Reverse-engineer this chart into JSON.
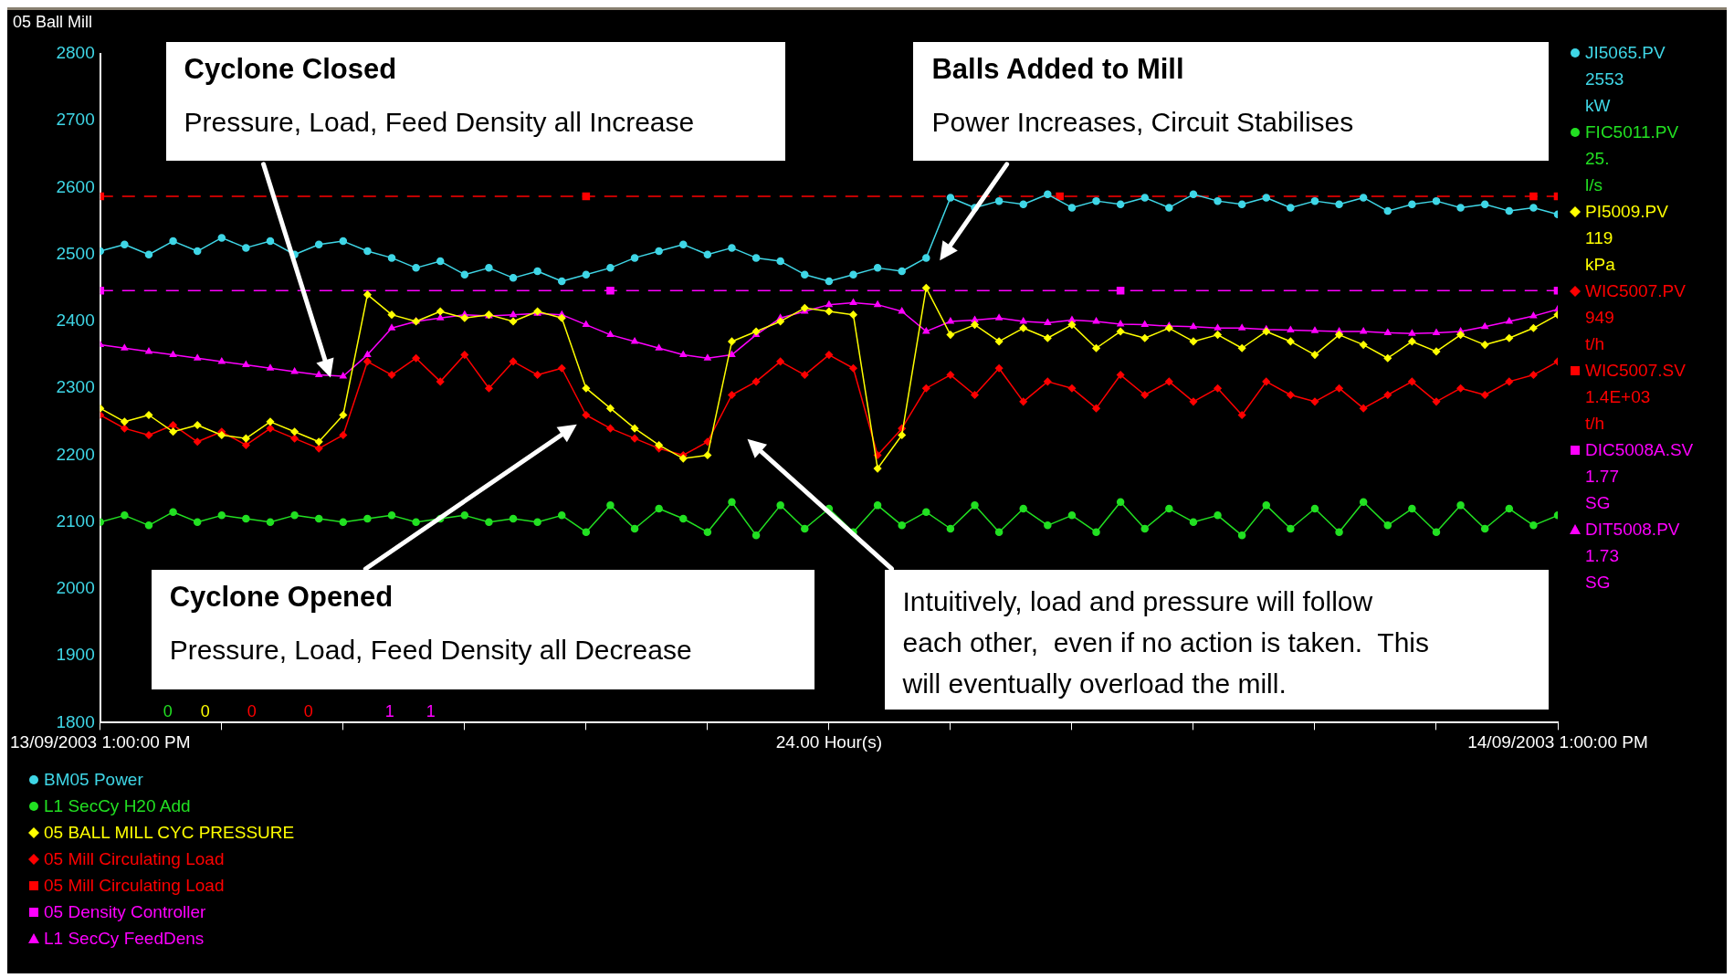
{
  "chart_data": {
    "type": "line",
    "title": "05 Ball Mill",
    "xlabel": "24.00 Hour(s)",
    "x": [
      "2003-09-13T13:00",
      "2003-09-13T13:24",
      "2003-09-13T13:48",
      "2003-09-13T14:12",
      "2003-09-13T14:36",
      "2003-09-13T15:00",
      "2003-09-13T15:24",
      "2003-09-13T15:48",
      "2003-09-13T16:12",
      "2003-09-13T16:36",
      "2003-09-13T17:00",
      "2003-09-13T17:24",
      "2003-09-13T17:48",
      "2003-09-13T18:12",
      "2003-09-13T18:36",
      "2003-09-13T19:00",
      "2003-09-13T19:24",
      "2003-09-13T19:48",
      "2003-09-13T20:12",
      "2003-09-13T20:36",
      "2003-09-13T21:00",
      "2003-09-13T21:24",
      "2003-09-13T21:48",
      "2003-09-13T22:12",
      "2003-09-13T22:36",
      "2003-09-13T23:00",
      "2003-09-13T23:24",
      "2003-09-13T23:48",
      "2003-09-14T00:12",
      "2003-09-14T00:36",
      "2003-09-14T01:00",
      "2003-09-14T01:24",
      "2003-09-14T01:48",
      "2003-09-14T02:12",
      "2003-09-14T02:36",
      "2003-09-14T03:00",
      "2003-09-14T03:24",
      "2003-09-14T03:48",
      "2003-09-14T04:12",
      "2003-09-14T04:36",
      "2003-09-14T05:00",
      "2003-09-14T05:24",
      "2003-09-14T05:48",
      "2003-09-14T06:12",
      "2003-09-14T06:36",
      "2003-09-14T07:00",
      "2003-09-14T07:24",
      "2003-09-14T07:48",
      "2003-09-14T08:12",
      "2003-09-14T08:36",
      "2003-09-14T09:00",
      "2003-09-14T09:24",
      "2003-09-14T09:48",
      "2003-09-14T10:12",
      "2003-09-14T10:36",
      "2003-09-14T11:00",
      "2003-09-14T11:24",
      "2003-09-14T11:48",
      "2003-09-14T12:12",
      "2003-09-14T12:36",
      "2003-09-14T13:00"
    ],
    "series": [
      {
        "name": "BM05 Power",
        "color": "#3fd6e6",
        "marker": "circle",
        "values": [
          2505,
          2515,
          2500,
          2520,
          2505,
          2525,
          2510,
          2520,
          2500,
          2515,
          2520,
          2505,
          2495,
          2480,
          2490,
          2470,
          2480,
          2465,
          2475,
          2460,
          2470,
          2480,
          2495,
          2505,
          2515,
          2500,
          2510,
          2495,
          2490,
          2470,
          2460,
          2470,
          2480,
          2475,
          2495,
          2585,
          2570,
          2580,
          2575,
          2590,
          2570,
          2580,
          2575,
          2585,
          2570,
          2590,
          2580,
          2575,
          2585,
          2570,
          2580,
          2575,
          2585,
          2565,
          2575,
          2580,
          2570,
          2575,
          2565,
          2570,
          2560
        ]
      },
      {
        "name": "L1 SecCy H20 Add",
        "color": "#22e022",
        "marker": "circle",
        "values": [
          2100,
          2110,
          2095,
          2115,
          2100,
          2110,
          2105,
          2100,
          2110,
          2105,
          2100,
          2105,
          2110,
          2100,
          2105,
          2110,
          2100,
          2105,
          2100,
          2110,
          2085,
          2125,
          2090,
          2120,
          2105,
          2085,
          2130,
          2080,
          2125,
          2090,
          2120,
          2085,
          2125,
          2095,
          2115,
          2090,
          2125,
          2085,
          2120,
          2095,
          2110,
          2085,
          2130,
          2090,
          2120,
          2100,
          2110,
          2080,
          2125,
          2090,
          2120,
          2085,
          2130,
          2095,
          2120,
          2085,
          2125,
          2090,
          2120,
          2095,
          2110
        ]
      },
      {
        "name": "05 BALL MILL CYC PRESSURE",
        "color": "#ffff00",
        "marker": "diamond",
        "values": [
          2270,
          2250,
          2260,
          2235,
          2245,
          2230,
          2225,
          2250,
          2235,
          2220,
          2260,
          2440,
          2410,
          2400,
          2415,
          2405,
          2410,
          2400,
          2415,
          2405,
          2300,
          2270,
          2240,
          2215,
          2195,
          2200,
          2370,
          2385,
          2400,
          2420,
          2415,
          2410,
          2180,
          2230,
          2450,
          2380,
          2395,
          2370,
          2390,
          2375,
          2395,
          2360,
          2385,
          2375,
          2390,
          2370,
          2380,
          2360,
          2385,
          2370,
          2350,
          2380,
          2365,
          2345,
          2370,
          2355,
          2380,
          2365,
          2375,
          2390,
          2410
        ]
      },
      {
        "name": "05 Mill Circulating Load",
        "color": "#ff0000",
        "marker": "diamond",
        "values": [
          2260,
          2240,
          2230,
          2245,
          2220,
          2235,
          2215,
          2240,
          2225,
          2210,
          2230,
          2340,
          2320,
          2345,
          2310,
          2350,
          2300,
          2340,
          2320,
          2330,
          2260,
          2240,
          2225,
          2210,
          2200,
          2220,
          2290,
          2310,
          2340,
          2320,
          2350,
          2330,
          2200,
          2240,
          2300,
          2320,
          2290,
          2330,
          2280,
          2310,
          2300,
          2270,
          2320,
          2290,
          2310,
          2280,
          2300,
          2260,
          2310,
          2290,
          2280,
          2300,
          2270,
          2290,
          2310,
          2280,
          2300,
          2290,
          2310,
          2320,
          2340
        ]
      },
      {
        "name": "05 Mill Circulating Load",
        "color": "#ff0000",
        "marker": "square",
        "line_style": "dashed",
        "x": [
          "2003-09-13T13:00",
          "2003-09-13T21:00",
          "2003-09-14T04:48",
          "2003-09-14T12:36",
          "2003-09-14T13:00"
        ],
        "values": [
          2587,
          2587,
          2587,
          2587,
          2587
        ]
      },
      {
        "name": "05 Density Controller",
        "color": "#ff00ff",
        "marker": "square",
        "line_style": "dashed",
        "x": [
          "2003-09-13T13:00",
          "2003-09-13T21:24",
          "2003-09-14T05:48",
          "2003-09-14T13:00"
        ],
        "values": [
          2446,
          2446,
          2446,
          2446
        ]
      },
      {
        "name": "L1 SecCy FeedDens",
        "color": "#ff00ff",
        "marker": "triangle",
        "values": [
          2365,
          2360,
          2355,
          2350,
          2345,
          2340,
          2335,
          2330,
          2325,
          2320,
          2318,
          2350,
          2390,
          2400,
          2405,
          2410,
          2408,
          2410,
          2412,
          2410,
          2395,
          2380,
          2370,
          2360,
          2350,
          2345,
          2350,
          2380,
          2405,
          2415,
          2425,
          2428,
          2425,
          2415,
          2385,
          2400,
          2402,
          2405,
          2400,
          2398,
          2402,
          2400,
          2396,
          2395,
          2393,
          2392,
          2390,
          2390,
          2388,
          2387,
          2386,
          2385,
          2385,
          2383,
          2382,
          2383,
          2385,
          2392,
          2400,
          2408,
          2418
        ]
      }
    ],
    "xlim": [
      "2003-09-13T13:00",
      "2003-09-14T13:00"
    ],
    "xticks": [
      {
        "value": "2003-09-13T13:00",
        "label": "13/09/2003 1:00:00 PM"
      },
      {
        "value": "2003-09-13T15:00",
        "label": null
      },
      {
        "value": "2003-09-13T17:00",
        "label": null
      },
      {
        "value": "2003-09-13T19:00",
        "label": null
      },
      {
        "value": "2003-09-13T21:00",
        "label": null
      },
      {
        "value": "2003-09-13T23:00",
        "label": null
      },
      {
        "value": "2003-09-14T01:00",
        "label": null
      },
      {
        "value": "2003-09-14T03:00",
        "label": null
      },
      {
        "value": "2003-09-14T05:00",
        "label": null
      },
      {
        "value": "2003-09-14T07:00",
        "label": null
      },
      {
        "value": "2003-09-14T09:00",
        "label": null
      },
      {
        "value": "2003-09-14T11:00",
        "label": null
      },
      {
        "value": "2003-09-14T13:00",
        "label": "14/09/2003 1:00:00 PM"
      }
    ],
    "ylim": [
      1800,
      2800
    ],
    "yticks": [
      1800,
      1900,
      2000,
      2100,
      2200,
      2300,
      2400,
      2500,
      2600,
      2700,
      2800
    ],
    "legend": "bottom left",
    "annotations": [
      "Cyclone Closed\n\nPressure, Load, Feed Density all Increase",
      "Balls Added to Mill\n\nPower Increases, Circuit Stabilises",
      "Cyclone Opened\n\nPressure, Load, Feed Density all Decrease",
      "Intuitively, load and pressure will follow\neach other,  even if no action is taken.  This\nwill eventually overload the mill.",
      "JI5065.PV\n2553\nkW",
      "FIC5011.PV\n25.\nl/s",
      "PI5009.PV\n119\nkPa",
      "WIC5007.PV\n949\nt/h",
      "WIC5007.SV\n1.4E+03\nt/h",
      "DIC5008A.SV\n1.77\nSG",
      "DIT5008.PV\n1.73\nSG",
      "0",
      "0",
      "0",
      "0",
      "1",
      "1"
    ]
  }
}
